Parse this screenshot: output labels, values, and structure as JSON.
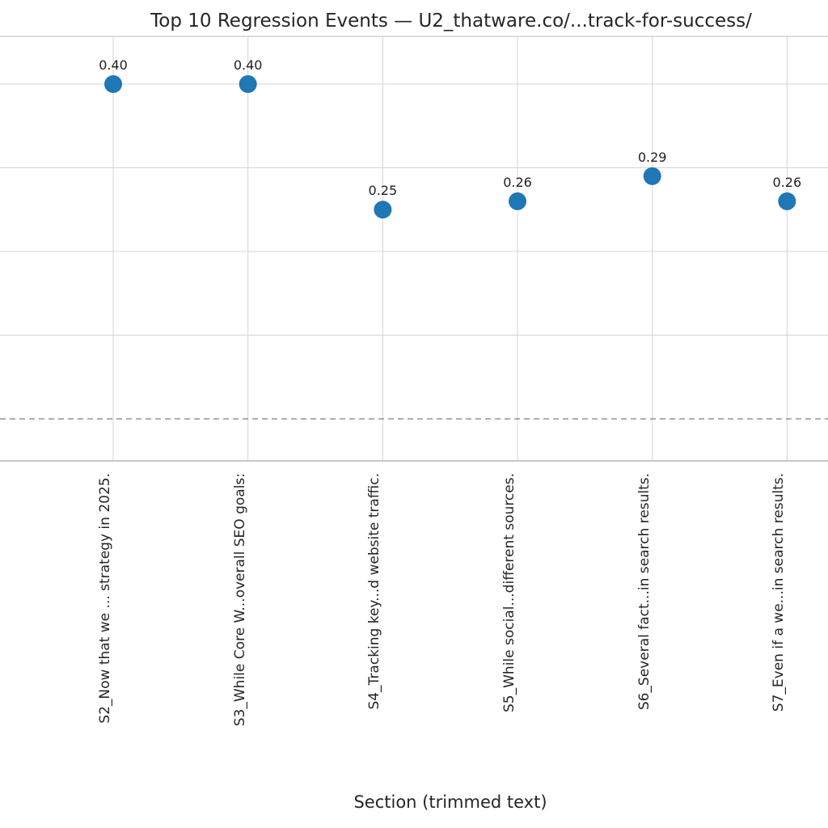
{
  "chart_data": {
    "type": "scatter",
    "title": "Top 10 Regression Events — U2_thatware.co/...track-for-success/",
    "xlabel": "Section (trimmed text)",
    "categories": [
      "S2_Now that we ... strategy in 2025.",
      "S3_While Core W...overall SEO goals:",
      "S4_Tracking key...d website traffic.",
      "S5_While social...different sources.",
      "S6_Several fact...in search results.",
      "S7_Even if a we...in search results."
    ],
    "values": [
      0.4,
      0.4,
      0.25,
      0.26,
      0.29,
      0.26
    ],
    "point_labels": [
      "0.40",
      "0.40",
      "0.25",
      "0.26",
      "0.29",
      "0.26"
    ],
    "baseline_value": 0.0,
    "baseline_style": "dashed",
    "ylim": [
      -0.05,
      0.457
    ],
    "grid": "on",
    "grid_y_values": [
      0.1,
      0.2,
      0.3,
      0.4
    ],
    "legend": "none",
    "marker_color": "#1f77b4"
  },
  "colors": {
    "marker": "#1f77b4",
    "grid": "#d4d4d4",
    "spine": "#c8c8c8",
    "baseline": "#7f7f7f",
    "text": "#262626"
  }
}
